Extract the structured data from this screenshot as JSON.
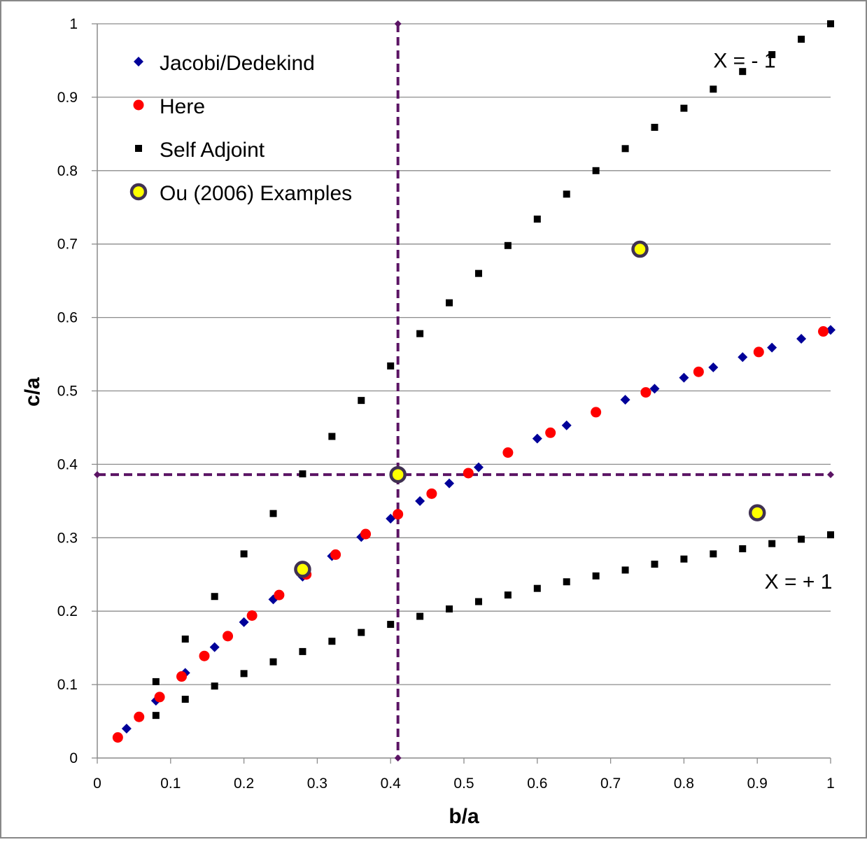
{
  "chart_data": {
    "type": "scatter",
    "xlabel": "b/a",
    "ylabel": "c/a",
    "xlim": [
      0,
      1
    ],
    "ylim": [
      0,
      1
    ],
    "x_ticks": [
      "0",
      "0.1",
      "0.2",
      "0.3",
      "0.4",
      "0.5",
      "0.6",
      "0.7",
      "0.8",
      "0.9",
      "1"
    ],
    "y_ticks": [
      "0",
      "0.1",
      "0.2",
      "0.3",
      "0.4",
      "0.5",
      "0.6",
      "0.7",
      "0.8",
      "0.9",
      "1"
    ],
    "grid": "horizontal",
    "legend_position": "top-left",
    "series": [
      {
        "name": "Jacobi/Dedekind",
        "marker": "diamond",
        "color": "#000099",
        "x": [
          0.04,
          0.08,
          0.12,
          0.16,
          0.2,
          0.24,
          0.28,
          0.32,
          0.36,
          0.4,
          0.44,
          0.48,
          0.52,
          0.6,
          0.64,
          0.72,
          0.76,
          0.8,
          0.84,
          0.88,
          0.92,
          0.96,
          1.0
        ],
        "y": [
          0.04,
          0.078,
          0.116,
          0.151,
          0.185,
          0.216,
          0.247,
          0.275,
          0.301,
          0.326,
          0.35,
          0.374,
          0.396,
          0.435,
          0.453,
          0.488,
          0.503,
          0.518,
          0.532,
          0.546,
          0.559,
          0.571,
          0.583
        ]
      },
      {
        "name": "Here",
        "marker": "circle",
        "color": "#ff0000",
        "x": [
          0.028,
          0.057,
          0.085,
          0.115,
          0.146,
          0.178,
          0.211,
          0.248,
          0.285,
          0.325,
          0.366,
          0.41,
          0.456,
          0.506,
          0.56,
          0.618,
          0.68,
          0.748,
          0.82,
          0.902,
          0.99
        ],
        "y": [
          0.028,
          0.056,
          0.083,
          0.111,
          0.139,
          0.166,
          0.194,
          0.222,
          0.25,
          0.277,
          0.305,
          0.332,
          0.36,
          0.388,
          0.416,
          0.443,
          0.471,
          0.498,
          0.526,
          0.553,
          0.581
        ]
      },
      {
        "name": "Self Adjoint",
        "marker": "square",
        "color": "#000000",
        "x": [
          0.08,
          0.12,
          0.16,
          0.2,
          0.24,
          0.28,
          0.32,
          0.36,
          0.4,
          0.44,
          0.48,
          0.52,
          0.56,
          0.6,
          0.64,
          0.68,
          0.72,
          0.76,
          0.8,
          0.84,
          0.88,
          0.92,
          0.96,
          1.0,
          0.08,
          0.12,
          0.16,
          0.2,
          0.24,
          0.28,
          0.32,
          0.36,
          0.4,
          0.44,
          0.48,
          0.52,
          0.56,
          0.6,
          0.64,
          0.68,
          0.72,
          0.76,
          0.8,
          0.84,
          0.88,
          0.92,
          0.96,
          1.0
        ],
        "y": [
          0.104,
          0.162,
          0.22,
          0.278,
          0.333,
          0.387,
          0.438,
          0.487,
          0.534,
          0.578,
          0.62,
          0.66,
          0.698,
          0.734,
          0.768,
          0.8,
          0.83,
          0.859,
          0.885,
          0.911,
          0.935,
          0.958,
          0.979,
          1.0,
          0.058,
          0.08,
          0.098,
          0.115,
          0.131,
          0.145,
          0.159,
          0.171,
          0.182,
          0.193,
          0.203,
          0.213,
          0.222,
          0.231,
          0.24,
          0.248,
          0.256,
          0.264,
          0.271,
          0.278,
          0.285,
          0.292,
          0.298,
          0.304
        ]
      },
      {
        "name": "Ou (2006) Examples",
        "marker": "ringed-circle",
        "color": "#ffff00",
        "edge_color": "#403152",
        "x": [
          0.28,
          0.41,
          0.74,
          0.9
        ],
        "y": [
          0.257,
          0.386,
          0.693,
          0.334
        ]
      }
    ],
    "reference_lines": {
      "color": "#5b1464",
      "style": "dashed",
      "vertical_x": 0.41,
      "horizontal_y": 0.386
    },
    "annotations": [
      {
        "text": "X = - 1",
        "x": 0.84,
        "y": 0.95
      },
      {
        "text": "X = + 1",
        "x": 0.91,
        "y": 0.24
      }
    ]
  }
}
